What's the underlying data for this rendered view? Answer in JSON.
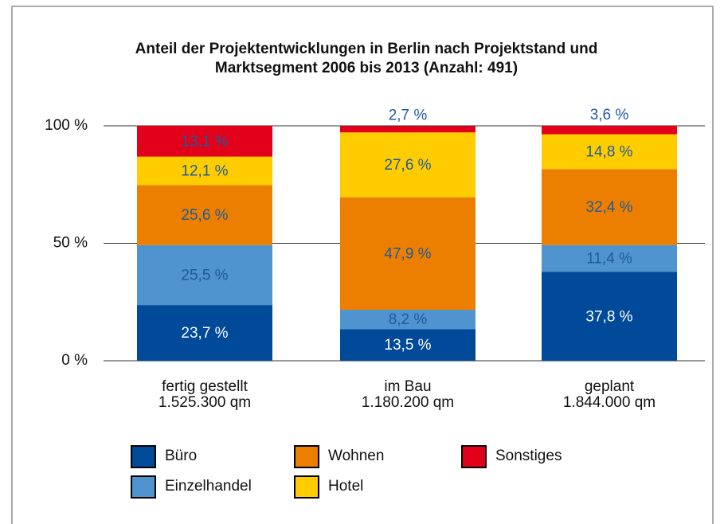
{
  "chart_data": {
    "type": "stacked_bar",
    "title": [
      "Anteil der Projektentwicklungen in Berlin nach Projektstand und",
      "Marktsegment 2006 bis 2013 (Anzahl: 491)"
    ],
    "categories": [
      [
        "fertig gestellt",
        "1.525.300 qm"
      ],
      [
        "im Bau",
        "1.180.200 qm"
      ],
      [
        "geplant",
        "1.844.000 qm"
      ]
    ],
    "ylim": [
      0,
      100
    ],
    "yticks": [
      {
        "value": 0,
        "label": "0 %"
      },
      {
        "value": 50,
        "label": "50 %"
      },
      {
        "value": 100,
        "label": "100 %"
      }
    ],
    "grid": true,
    "series": [
      {
        "name": "Büro",
        "color": "#004a99",
        "values": [
          23.7,
          13.5,
          37.8
        ],
        "value_labels": [
          "23,7 %",
          "13,5 %",
          "37,8 %"
        ]
      },
      {
        "name": "Einzelhandel",
        "color": "#4f93cf",
        "values": [
          25.5,
          8.2,
          11.4
        ],
        "value_labels": [
          "25,5 %",
          "8,2 %",
          "11,4 %"
        ]
      },
      {
        "name": "Wohnen",
        "color": "#ed7f00",
        "values": [
          25.6,
          47.9,
          32.4
        ],
        "value_labels": [
          "25,6 %",
          "47,9 %",
          "32,4 %"
        ]
      },
      {
        "name": "Hotel",
        "color": "#ffcc00",
        "values": [
          12.1,
          27.6,
          14.8
        ],
        "value_labels": [
          "12,1 %",
          "27,6 %",
          "14,8 %"
        ]
      },
      {
        "name": "Sonstiges",
        "color": "#e2001a",
        "values": [
          13.1,
          2.7,
          3.6
        ],
        "value_labels": [
          "13,1 %",
          "2,7 %",
          "3,6 %"
        ]
      }
    ]
  }
}
